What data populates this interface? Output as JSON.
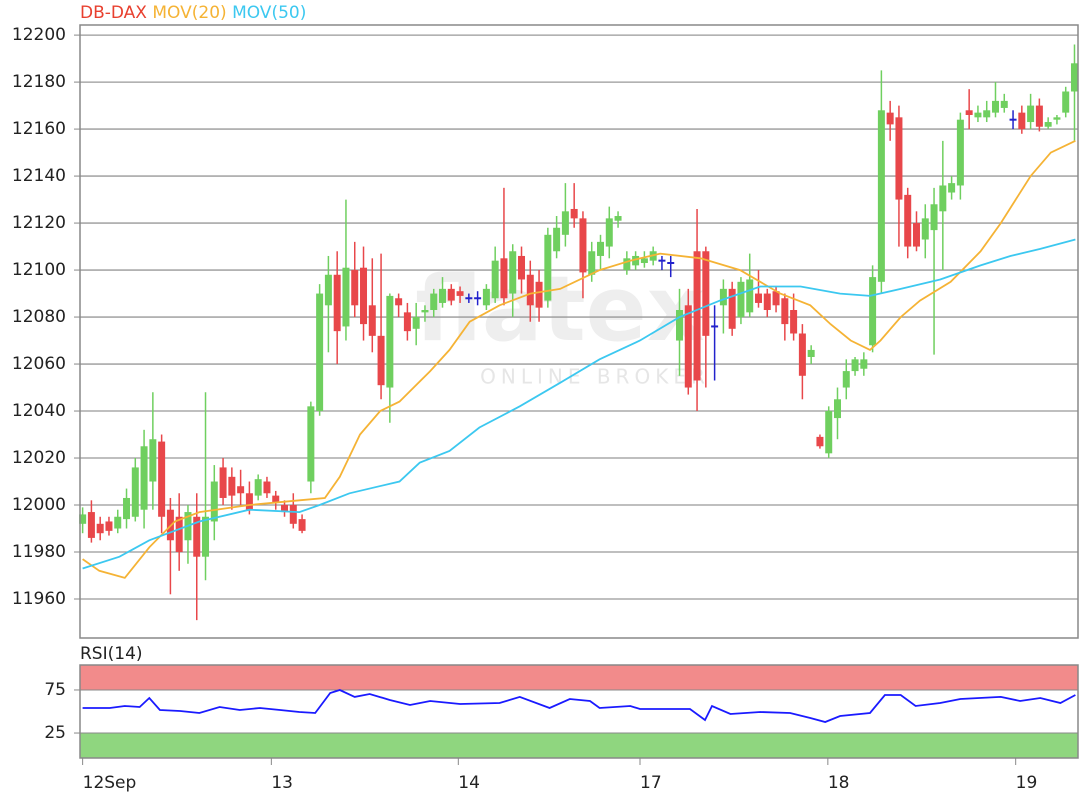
{
  "chart_data": [
    {
      "type": "candlestick",
      "name": "DB-DAX",
      "name_color": "#e8402f",
      "up_color": "#6fcf5f",
      "down_color": "#e8474a",
      "doji_color": "#2222cc",
      "watermark": "flatex",
      "watermark_sub": "ONLINE BROKER",
      "candles": [
        [
          11992,
          11999,
          11988,
          11996
        ],
        [
          11997,
          12002,
          11984,
          11986
        ],
        [
          11992,
          11995,
          11985,
          11988
        ],
        [
          11993,
          11995,
          11987,
          11989
        ],
        [
          11990,
          11998,
          11988,
          11995
        ],
        [
          11994,
          12007,
          11990,
          12003
        ],
        [
          11995,
          12020,
          11993,
          12016
        ],
        [
          11998,
          12032,
          11990,
          12025
        ],
        [
          12010,
          12048,
          11998,
          12028
        ],
        [
          12027,
          12030,
          11988,
          11995
        ],
        [
          11998,
          12003,
          11962,
          11985
        ],
        [
          11995,
          12005,
          11972,
          11980
        ],
        [
          11985,
          12000,
          11975,
          11997
        ],
        [
          11995,
          12005,
          11951,
          11978
        ],
        [
          11978,
          12048,
          11968,
          11995
        ],
        [
          11993,
          12017,
          11985,
          12010
        ],
        [
          12016,
          12020,
          12000,
          12003
        ],
        [
          12012,
          12016,
          11998,
          12004
        ],
        [
          12008,
          12015,
          12000,
          12005
        ],
        [
          12005,
          12010,
          11996,
          11998
        ],
        [
          12004,
          12013,
          12002,
          12011
        ],
        [
          12010,
          12012,
          12003,
          12005
        ],
        [
          12004,
          12006,
          11998,
          12001
        ],
        [
          12000,
          12002,
          11995,
          11997
        ],
        [
          12000,
          12005,
          11990,
          11992
        ],
        [
          11994,
          11996,
          11988,
          11989
        ],
        [
          12010,
          12044,
          12005,
          12042
        ],
        [
          12040,
          12094,
          12038,
          12090
        ],
        [
          12085,
          12106,
          12065,
          12098
        ],
        [
          12098,
          12108,
          12060,
          12074
        ],
        [
          12076,
          12130,
          12070,
          12101
        ],
        [
          12100,
          12112,
          12080,
          12085
        ],
        [
          12101,
          12110,
          12070,
          12077
        ],
        [
          12085,
          12105,
          12065,
          12072
        ],
        [
          12072,
          12107,
          12045,
          12051
        ],
        [
          12050,
          12090,
          12035,
          12089
        ],
        [
          12088,
          12090,
          12080,
          12085
        ],
        [
          12082,
          12086,
          12070,
          12074
        ],
        [
          12075,
          12086,
          12068,
          12080
        ],
        [
          12082,
          12085,
          12078,
          12083
        ],
        [
          12083,
          12092,
          12080,
          12090
        ],
        [
          12086,
          12097,
          12084,
          12092
        ],
        [
          12092,
          12094,
          12085,
          12087
        ],
        [
          12091,
          12093,
          12086,
          12089
        ],
        [
          12088,
          12090,
          12086,
          12088
        ],
        [
          12088,
          12091,
          12085,
          12088
        ],
        [
          12085,
          12094,
          12083,
          12092
        ],
        [
          12088,
          12110,
          12086,
          12104
        ],
        [
          12105,
          12135,
          12085,
          12088
        ],
        [
          12090,
          12111,
          12080,
          12108
        ],
        [
          12106,
          12110,
          12090,
          12096
        ],
        [
          12098,
          12104,
          12078,
          12085
        ],
        [
          12095,
          12100,
          12078,
          12084
        ],
        [
          12087,
          12118,
          12084,
          12115
        ],
        [
          12108,
          12123,
          12105,
          12118
        ],
        [
          12115,
          12137,
          12110,
          12125
        ],
        [
          12126,
          12137,
          12118,
          12122
        ],
        [
          12122,
          12125,
          12088,
          12099
        ],
        [
          12098,
          12112,
          12095,
          12108
        ],
        [
          12106,
          12115,
          12100,
          12112
        ],
        [
          12110,
          12127,
          12105,
          12122
        ],
        [
          12121,
          12125,
          12118,
          12123
        ],
        [
          12100,
          12108,
          12098,
          12105
        ],
        [
          12102,
          12108,
          12100,
          12106
        ],
        [
          12103,
          12108,
          12101,
          12105
        ],
        [
          12104,
          12110,
          12102,
          12108
        ],
        [
          12104,
          12106,
          12100,
          12104
        ],
        [
          12103,
          12106,
          12097,
          12103
        ],
        [
          12070,
          12092,
          12055,
          12083
        ],
        [
          12085,
          12092,
          12047,
          12050
        ],
        [
          12108,
          12126,
          12040,
          12053
        ],
        [
          12108,
          12110,
          12050,
          12072
        ],
        [
          12076,
          12085,
          12053,
          12076
        ],
        [
          12085,
          12096,
          12073,
          12092
        ],
        [
          12092,
          12095,
          12072,
          12075
        ],
        [
          12080,
          12097,
          12077,
          12095
        ],
        [
          12082,
          12107,
          12080,
          12096
        ],
        [
          12090,
          12100,
          12084,
          12086
        ],
        [
          12090,
          12092,
          12080,
          12083
        ],
        [
          12091,
          12093,
          12082,
          12085
        ],
        [
          12088,
          12090,
          12070,
          12077
        ],
        [
          12083,
          12090,
          12070,
          12073
        ],
        [
          12073,
          12077,
          12045,
          12055
        ],
        [
          12063,
          12068,
          12060,
          12066
        ],
        [
          12029,
          12030,
          12024,
          12025
        ],
        [
          12022,
          12042,
          12020,
          12040
        ],
        [
          12037,
          12050,
          12028,
          12045
        ],
        [
          12050,
          12062,
          12045,
          12057
        ],
        [
          12057,
          12063,
          12055,
          12062
        ],
        [
          12058,
          12065,
          12055,
          12062
        ],
        [
          12068,
          12102,
          12065,
          12097
        ],
        [
          12095,
          12185,
          12090,
          12168
        ],
        [
          12167,
          12172,
          12155,
          12162
        ],
        [
          12165,
          12170,
          12110,
          12130
        ],
        [
          12132,
          12135,
          12105,
          12110
        ],
        [
          12120,
          12125,
          12108,
          12110
        ],
        [
          12113,
          12128,
          12105,
          12122
        ],
        [
          12117,
          12135,
          12064,
          12128
        ],
        [
          12125,
          12155,
          12100,
          12136
        ],
        [
          12133,
          12140,
          12130,
          12137
        ],
        [
          12136,
          12167,
          12130,
          12164
        ],
        [
          12168,
          12177,
          12160,
          12166
        ],
        [
          12165,
          12170,
          12163,
          12167
        ],
        [
          12165,
          12172,
          12163,
          12168
        ],
        [
          12167,
          12180,
          12165,
          12172
        ],
        [
          12169,
          12175,
          12167,
          12172
        ],
        [
          12164,
          12168,
          12160,
          12164
        ],
        [
          12167,
          12170,
          12158,
          12160
        ],
        [
          12163,
          12175,
          12160,
          12170
        ],
        [
          12170,
          12173,
          12159,
          12161
        ],
        [
          12161,
          12165,
          12160,
          12163
        ],
        [
          12164,
          12166,
          12162,
          12165
        ],
        [
          12167,
          12178,
          12165,
          12176
        ],
        [
          12176,
          12196,
          12155,
          12188
        ]
      ],
      "series": [
        {
          "name": "MOV(20)",
          "color": "#f5b335",
          "x": [
            0,
            1.9,
            4.8,
            7.6,
            10.5,
            13.3,
            19,
            24.7,
            27.6,
            29.3,
            31.6,
            33.9,
            36.1,
            39.6,
            41.8,
            44.1,
            47.5,
            51,
            54.4,
            58.9,
            62.4,
            65.8,
            70.4,
            74.9,
            79.5,
            82.9,
            85.2,
            87.5,
            89.7,
            90.9,
            93.2,
            95.4,
            98.9,
            102.3,
            104.6,
            108,
            110.3,
            113.1
          ],
          "values": [
            11977,
            11972,
            11969,
            11982,
            11993,
            11997,
            12000,
            12002,
            12003,
            12012,
            12030,
            12040,
            12044,
            12057,
            12066,
            12078,
            12085,
            12090,
            12092,
            12100,
            12104,
            12107,
            12105,
            12100,
            12090,
            12085,
            12077,
            12070,
            12066,
            12070,
            12080,
            12087,
            12095,
            12108,
            12120,
            12140,
            12150,
            12155
          ]
        },
        {
          "name": "MOV(50)",
          "color": "#3cc8f0",
          "x": [
            0,
            4.2,
            7.6,
            13.3,
            19,
            24.7,
            27,
            30.4,
            36.1,
            38.4,
            41.8,
            45.2,
            49.8,
            54.4,
            58.9,
            63.5,
            68,
            72.6,
            77.2,
            81.8,
            86.3,
            89.7,
            93.2,
            97.7,
            102.3,
            105.7,
            109.1,
            113.1
          ],
          "values": [
            11973,
            11978,
            11985,
            11993,
            11998,
            11997,
            12000,
            12005,
            12010,
            12018,
            12023,
            12033,
            12042,
            12052,
            12062,
            12070,
            12080,
            12087,
            12093,
            12093,
            12090,
            12089,
            12092,
            12096,
            12102,
            12106,
            12109,
            12113
          ]
        }
      ],
      "xlim": [
        -0.3,
        113.4
      ],
      "ylim": [
        11943.4,
        12204.3
      ],
      "yticks": [
        11960,
        11980,
        12000,
        12020,
        12040,
        12060,
        12080,
        12100,
        12120,
        12140,
        12160,
        12180,
        12200
      ],
      "grid": true
    },
    {
      "type": "line",
      "series": [
        {
          "name": "RSI(14)",
          "color": "#1a1aff",
          "x": [
            0,
            3.1,
            4.8,
            6.5,
            7.6,
            8.8,
            11.1,
            13.3,
            15.6,
            17.9,
            20.2,
            22.5,
            24.7,
            26.5,
            28.2,
            29.3,
            31,
            32.7,
            35,
            37.3,
            39.6,
            43,
            47.5,
            49.8,
            53.2,
            55.5,
            57.8,
            58.9,
            62.4,
            63.5,
            69.2,
            70.9,
            71.7,
            73.8,
            77.2,
            80.6,
            82.9,
            84.6,
            86.3,
            89.7,
            91.4,
            93.2,
            94.9,
            97.7,
            100,
            104.6,
            106.8,
            109.1,
            111.4,
            113.1
          ],
          "values": [
            54.1,
            54.1,
            56.4,
            55.2,
            65.7,
            51.7,
            50.6,
            48.3,
            55.2,
            51.7,
            54.1,
            51.7,
            49.4,
            48.3,
            71.5,
            75,
            66.9,
            70.3,
            63.4,
            57.6,
            62.2,
            58.7,
            59.9,
            66.9,
            54.1,
            64.5,
            62.2,
            54.1,
            56.4,
            52.9,
            52.9,
            40.1,
            56.4,
            47.1,
            49.4,
            48.3,
            42.4,
            37.8,
            44.8,
            48.3,
            69.2,
            69.2,
            56.4,
            59.9,
            64.5,
            66.9,
            62.2,
            65.7,
            59.9,
            69.2
          ]
        }
      ],
      "band_colors": [
        "#f28b8b",
        "#8fd67f"
      ],
      "xlim": [
        -0.3,
        113.4
      ],
      "ylim": [
        -4,
        104
      ],
      "yticks": [
        25,
        75
      ],
      "xticks": [
        {
          "value": 0,
          "label": "12Sep"
        },
        {
          "value": 21.5,
          "label": "13"
        },
        {
          "value": 42.8,
          "label": "14"
        },
        {
          "value": 63.5,
          "label": "17"
        },
        {
          "value": 84.9,
          "label": "18"
        },
        {
          "value": 106.3,
          "label": "19"
        }
      ]
    }
  ]
}
